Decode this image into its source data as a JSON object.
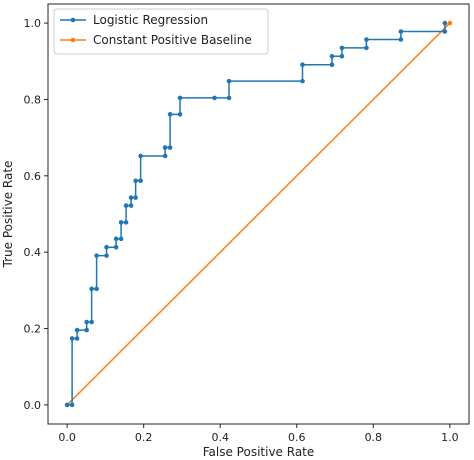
{
  "chart_data": {
    "type": "line",
    "title": "",
    "xlabel": "False Positive Rate",
    "ylabel": "True Positive Rate",
    "xlim": [
      -0.05,
      1.05
    ],
    "ylim": [
      -0.05,
      1.05
    ],
    "xticks": [
      0.0,
      0.2,
      0.4,
      0.6,
      0.8,
      1.0
    ],
    "yticks": [
      0.0,
      0.2,
      0.4,
      0.6,
      0.8,
      1.0
    ],
    "xtick_labels": [
      "0.0",
      "0.2",
      "0.4",
      "0.6",
      "0.8",
      "1.0"
    ],
    "ytick_labels": [
      "0.0",
      "0.2",
      "0.4",
      "0.6",
      "0.8",
      "1.0"
    ],
    "grid": false,
    "legend_position": "top-left",
    "series": [
      {
        "name": "Logistic Regression",
        "color": "#1f77b4",
        "marker": "dot",
        "x": [
          0.0,
          0.013,
          0.013,
          0.026,
          0.026,
          0.051,
          0.051,
          0.064,
          0.064,
          0.077,
          0.077,
          0.103,
          0.103,
          0.128,
          0.128,
          0.141,
          0.141,
          0.154,
          0.154,
          0.167,
          0.167,
          0.179,
          0.179,
          0.192,
          0.192,
          0.256,
          0.256,
          0.269,
          0.269,
          0.295,
          0.295,
          0.385,
          0.423,
          0.423,
          0.615,
          0.615,
          0.692,
          0.692,
          0.718,
          0.718,
          0.782,
          0.782,
          0.872,
          0.872,
          0.987,
          0.987
        ],
        "y": [
          0.0,
          0.0,
          0.174,
          0.174,
          0.196,
          0.196,
          0.217,
          0.217,
          0.304,
          0.304,
          0.391,
          0.391,
          0.413,
          0.413,
          0.435,
          0.435,
          0.478,
          0.478,
          0.522,
          0.522,
          0.543,
          0.543,
          0.587,
          0.587,
          0.652,
          0.652,
          0.674,
          0.674,
          0.761,
          0.761,
          0.804,
          0.804,
          0.804,
          0.848,
          0.848,
          0.891,
          0.891,
          0.913,
          0.913,
          0.935,
          0.935,
          0.957,
          0.957,
          0.978,
          0.978,
          1.0
        ]
      },
      {
        "name": "Constant Positive Baseline",
        "color": "#ff7f0e",
        "marker": "dot",
        "x": [
          0.0,
          1.0
        ],
        "y": [
          0.0,
          1.0
        ]
      }
    ]
  }
}
